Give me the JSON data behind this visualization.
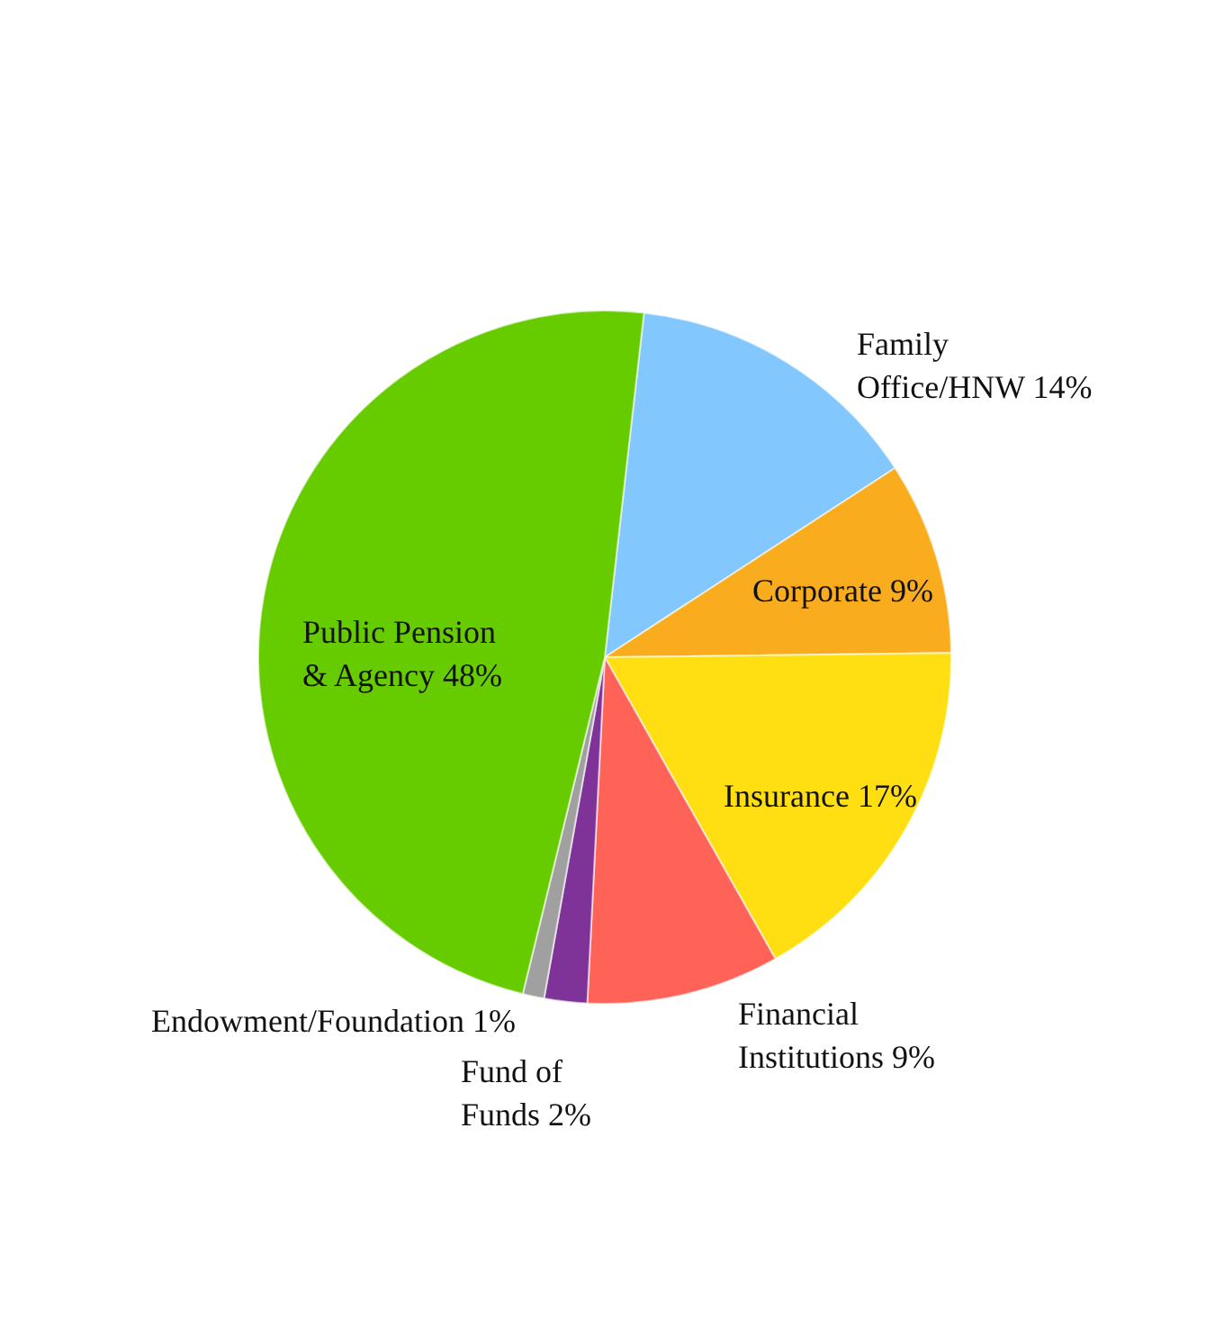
{
  "chart_data": {
    "type": "pie",
    "categories": [
      "Family Office/HNW",
      "Corporate",
      "Insurance",
      "Financial Institutions",
      "Fund of Funds",
      "Endowment/Foundation",
      "Public Pension & Agency"
    ],
    "values": [
      14,
      9,
      17,
      9,
      2,
      1,
      48
    ],
    "colors": [
      "#82c8fe",
      "#faac1f",
      "#ffdf12",
      "#ff6357",
      "#7f3399",
      "#a0a0a0",
      "#66cc00"
    ],
    "value_labels": [
      "14%",
      "9%",
      "17%",
      "9%",
      "2%",
      "1%",
      "48%"
    ]
  }
}
